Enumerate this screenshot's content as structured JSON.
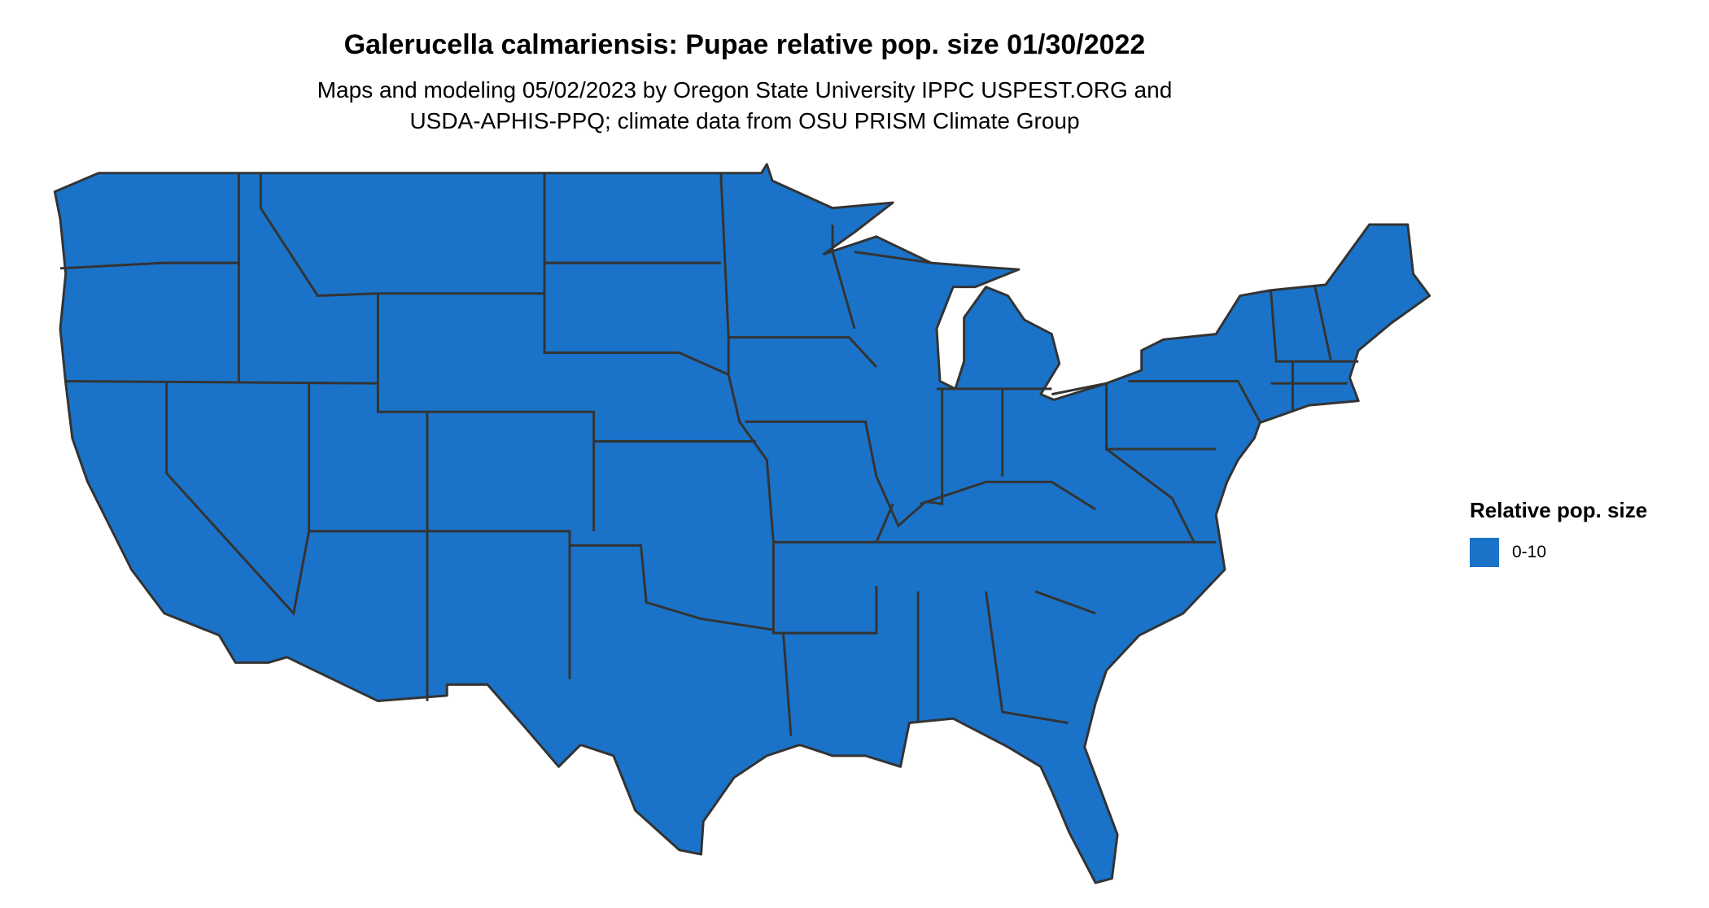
{
  "title": "Galerucella calmariensis: Pupae relative pop. size 01/30/2022",
  "subtitle": {
    "line1": "Maps and modeling 05/02/2023 by Oregon State University IPPC USPEST.ORG and",
    "line2": "USDA-APHIS-PPQ; climate data from OSU PRISM Climate Group"
  },
  "map": {
    "region": "Contiguous United States (state boundaries)",
    "fill_color": "#1a73c8",
    "border_color": "#333333"
  },
  "legend": {
    "title": "Relative pop. size",
    "items": [
      {
        "label": "0-10",
        "color": "#1a73c8"
      }
    ]
  }
}
